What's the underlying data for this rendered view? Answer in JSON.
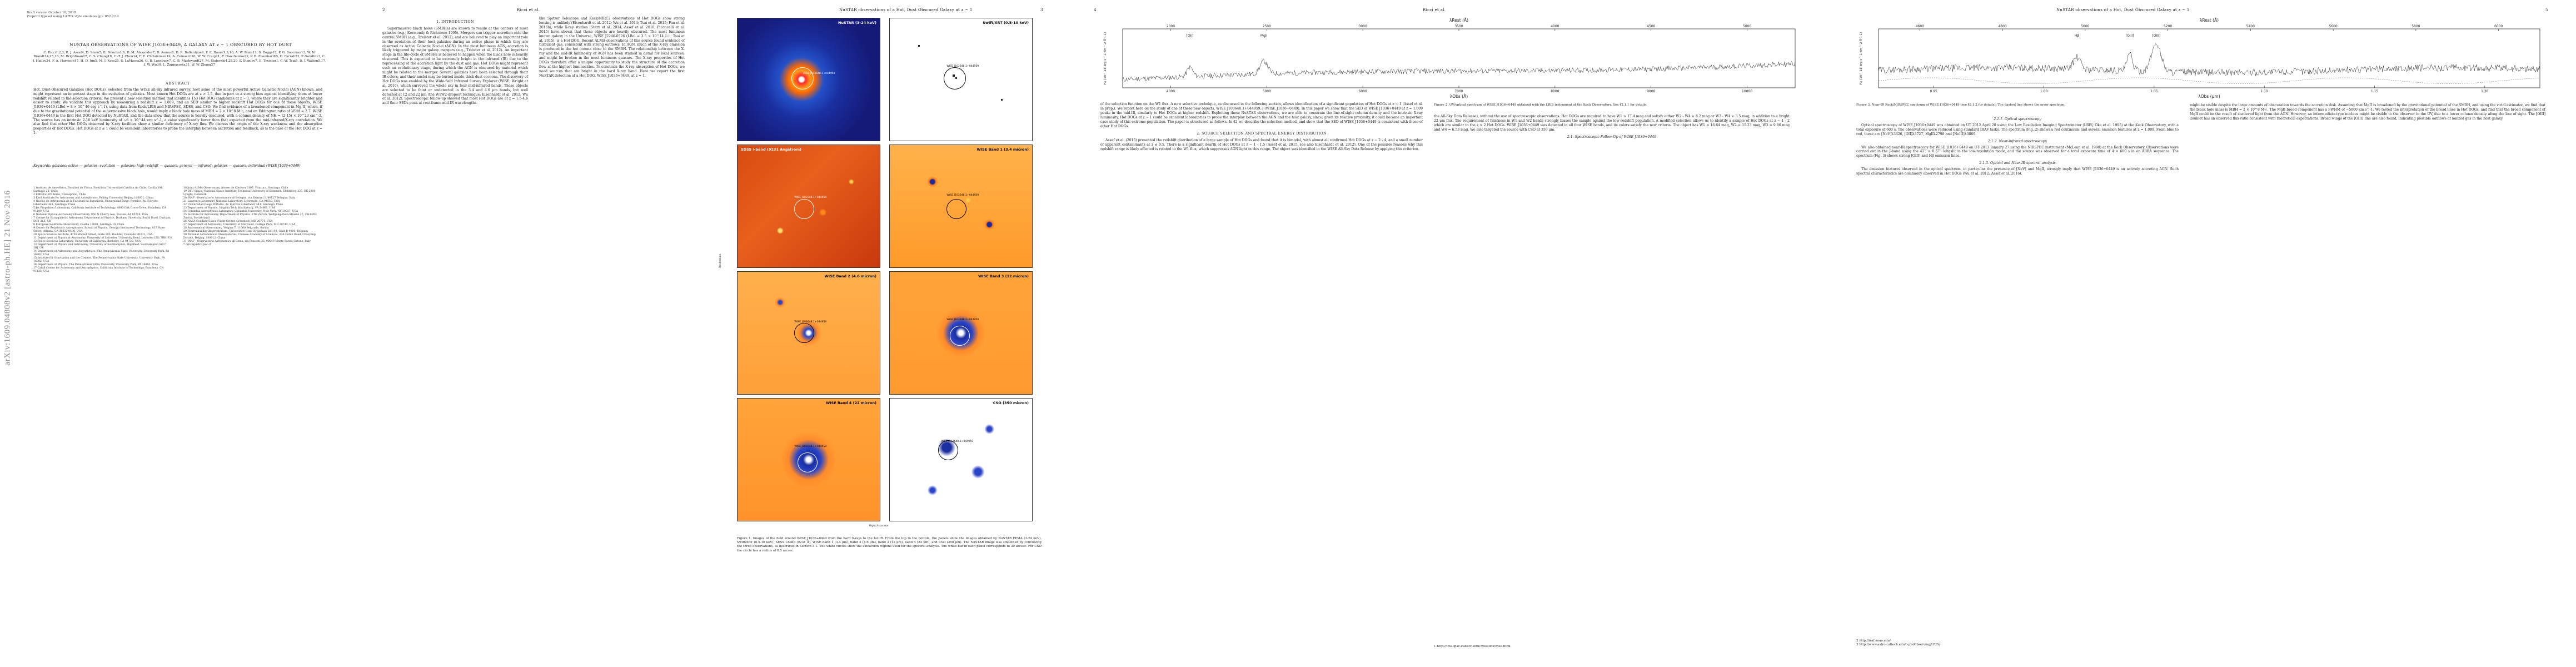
{
  "page1": {
    "arxiv_id": "arXiv:1609.04808v2  [astro-ph.HE]  21 Nov 2016",
    "draft_line1": "Draft version October 10, 2018",
    "draft_line2": "Preprint typeset using LATEX style emulateapj v. 05/12/14",
    "title": "NUSTAR OBSERVATIONS OF WISE J1036+0449, A GALAXY AT z ~ 1 OBSCURED BY HOT DUST",
    "authors": "C. Ricci1,2,3, R. J. Assef4, D. Stern5, R. Nikutta1,6, D. M. Alexander7, D. Asmus8, D. R. Ballantyne9, F. E. Bauer1,3,10, A. W. Blain11, S. Boggs12, P. G. Boorman13, W. N. Brandt14,15,16, M. Brightman17, C. S. Chang18, C.-T. J. Chen14, F. E. Christensen19, A. Comastri20, W. W. Craig21, T. Díaz-Santos22, P. R. Eisenhardt5, D. Farrah23, P. Gandhi13, C. J. Hailey24, F. A. Harrison17, H. D. Jun5, M. J. Koss25, S. LaMassa26, G. B. Lansbury7, C. B. Markwardt27, M. Stalevski4,28,29, F. Stanley7, E. Treister1, C.-W. Tsai5, D. J. Walton5,17, J. W. Wu30, L. Zappacosta31, W. W. Zhang27",
    "abstract_heading": "ABSTRACT",
    "abstract": "Hot, Dust-Obscured Galaxies (Hot DOGs), selected from the WISE all-sky infrared survey, host some of the most powerful Active Galactic Nuclei (AGN) known, and might represent an important stage in the evolution of galaxies. Most known Hot DOGs are at z > 1.5, due in part to a strong bias against identifying them at lower redshift related to the selection criteria. We present a new selection method that identifies 153 Hot DOG candidates at z ~ 1, where they are significantly brighter and easier to study. We validate this approach by measuring a redshift z = 1.009, and an SED similar to higher redshift Hot DOGs for one of these objects, WISE J1036+0449 (LBol ≃ 8 × 10^46 erg s^-1), using data from Keck/LRIS and NIRSPEC, SDSS, and CSO. We find evidence of a broadened component in Mg II, which, if due to the gravitational potential of the supermassive black hole, would imply a black hole mass of MBH ≃ 2 × 10^8 M☉, and an Eddington ratio of λEdd ≃ 2.7. WISE J1036+0449 is the first Hot DOG detected by NuSTAR, and the data show that the source is heavily obscured, with a column density of NH ≃ (2-15) × 10^23 cm^-2. The source has an intrinsic 2-10 keV luminosity of ~6 × 10^44 erg s^-1, a value significantly lower than that expected from the mid-infrared/X-ray correlation. We also find that other Hot DOGs observed by X-ray facilities show a similar deficiency of X-ray flux. We discuss the origin of the X-ray weakness and the absorption properties of Hot DOGs. Hot DOGs at z ≲ 1 could be excellent laboratories to probe the interplay between accretion and feedback, as is the case of the Hot DOG at z ≃ 1.",
    "keywords": "Keywords: galaxies: active — galaxies: evolution — galaxies: high-redshift — quasars: general — infrared: galaxies — quasars: individual (WISE J1036+0449)",
    "affiliations_left": "1 Instituto de Astrofísica, Facultad de Física, Pontificia Universidad Católica de Chile, Casilla 306, Santiago 22, Chile\n2 EMBIGGEN Anillo, Concepción, Chile\n3 Kavli Institute for Astronomy and Astrophysics, Peking University, Beijing 100871, China\n4 Núcleo de Astronomía de la Facultad de Ingeniería, Universidad Diego Portales, Av. Ejército Libertador 441, Santiago, Chile\n5 Jet Propulsion Laboratory, California Institute of Technology, 4800 Oak Grove Drive, Pasadena, CA 91109, USA\n6 National Optical Astronomy Observatory, 950 N Cherry Ave, Tucson, AZ 85719, USA\n7 Centre for Extragalactic Astronomy, Department of Physics, Durham University, South Road, Durham, DH1 3LE, UK\n8 European Southern Observatory, Casilla 19001, Santiago 19, Chile\n9 Center for Relativistic Astrophysics, School of Physics, Georgia Institute of Technology, 837 State Street, Atlanta, GA 30332-0430, USA\n10 Space Science Institute, 4750 Walnut Street, Suite 205, Boulder, Colorado 80301, USA\n11 Department of Physics & Astronomy, University of Leicester, University Road, Leicester LE1 7RH, UK\n12 Space Sciences Laboratory, University of California, Berkeley, CA 94720, USA\n13 Department of Physics and Astronomy, University of Southampton, Highfield, Southampton SO17 1BJ, UK\n14 Department of Astronomy and Astrophysics, The Pennsylvania State University, University Park, PA 16802, USA\n15 Institute for Gravitation and the Cosmos, The Pennsylvania State University, University Park, PA 16802, USA\n16 Department of Physics, The Pennsylvania State University, University Park, PA 16802, USA\n17 Cahill Center for Astronomy and Astrophysics, California Institute of Technology, Pasadena, CA 91125, USA",
    "affiliations_right": "18 Joint ALMA Observatory, Alonso de Córdova 3107, Vitacura, Santiago, Chile\n19 DTU Space, National Space Institute, Technical University of Denmark, Elektrovej 327, DK-2800 Lyngby, Denmark\n20 INAF - Osservatorio Astronomico di Bologna, via Ranzani 1, 40127 Bologna, Italy\n21 Lawrence Livermore National Laboratory, Livermore, CA 94550, USA\n22 Universidad Diego Portales, Av. Ejército Libertador 441, Santiago, Chile\n23 Department of Physics, Virginia Tech, Blacksburg, VA 24061, USA\n24 Columbia Astrophysics Laboratory, Columbia University, New York, NY 10027, USA\n25 Institute for Astronomy, Department of Physics, ETH Zurich, Wolfgang-Pauli-Strasse 27, CH-8093 Zurich, Switzerland\n26 NASA Goddard Space Flight Center, Greenbelt, MD 20771, USA\n27 Department of Astronomy, University of Maryland, College Park, MD 20742, USA\n28 Astronomical Observatory, Volgina 7, 11060 Belgrade, Serbia\n29 Sterrenkundig Observatorium, Universiteit Gent, Krijgslaan 281-S9, Gent B-9000, Belgium\n30 National Astronomical Observatories, Chinese Academy of Sciences, 20A Datun Road, Chaoyang District, Beijing, 100012, China\n31 INAF - Osservatorio Astronomico di Roma, via Frascati 33, 00040 Monte Porzio Catone, Italy\n* cricci@astro.puc.cl"
  },
  "page2": {
    "running_head": "Ricci et al.",
    "page_number": "2",
    "section1": "1. INTRODUCTION",
    "col_left": "Supermassive black holes (SMBHs) are known to reside at the centers of most galaxies (e.g., Kormendy & Richstone 1995). Mergers can trigger accretion onto the central SMBH (e.g., Treister et al. 2012), and are believed to play an important role in the evolution of their host galaxies during an active phase in which they are observed as Active Galactic Nuclei (AGN). In the most luminous AGN, accretion is likely triggered by major galaxy mergers (e.g., Treister et al. 2012). An important stage in the life-cycle of SMBHs is believed to happen when the black hole is heavily obscured. This is expected to be extremely bright in the infrared (IR) due to the reprocessing of the accretion light by the dust and gas. Hot DOGs might represent such an evolutionary stage, during which the AGN is obscured by material which might be related to the merger. Several galaxies have been selected through their IR colors, and their nuclei may be buried inside thick dust cocoons. The discovery of Hot DOGs was enabled by the Wide-field Infrared Survey Explorer (WISE; Wright et al. 2010), which surveyed the whole sky in four mid-infrared bands. These objects are selected to be faint or undetected in the 3.4 and 4.6 μm bands, but well detected at 12 and 22 μm (the W1W2-dropout technique; Eisenhardt et al. 2012; Wu et al. 2012). Spectroscopic follow-up showed that most Hot DOGs are at z = 1.5-4.6 and their SEDs peak at rest-frame mid-IR wavelengths.",
    "col_right": "like Spitzer Telescope and Keck/NIRC2 observations of Hot DOGs show strong lensing is unlikely (Eisenhardt et al. 2012; Wu et al. 2014; Tsai et al. 2015; Fan et al. 2016b), while X-ray studies (Stern et al. 2014; Assef et al. 2016; Piconcelli et al. 2015) have shown that these objects are heavily obscured. The most luminous known galaxy in the Universe, WISE J2246-0526 (LBol ≃ 3.5 × 10^14 L☉; Tsai et al. 2015), is a Hot DOG. Recent ALMA observations of this source found evidence of turbulent gas, consistent with strong outflows. In AGN, much of the X-ray emission is produced in the hot corona close to the SMBH. The relationship between the X-ray and the mid-IR luminosity of AGN has been studied in detail for local sources, and might be broken in the most luminous quasars. The X-ray properties of Hot DOGs therefore offer a unique opportunity to study the structure of the accretion flow at the highest luminosities. To constrain the X-ray absorption of Hot DOGs, we need sources that are bright in the hard X-ray band. Here we report the first NuSTAR detection of a Hot DOG, WISE J1036+0449, at z ≃ 1."
  },
  "page3": {
    "running_head": "NuSTAR observations of a Hot, Dust Obscured Galaxy at z ~ 1",
    "page_number": "3",
    "panels": [
      {
        "title": "NuSTAR (3-24 keV)",
        "label": "WISE J103648.1+044959"
      },
      {
        "title": "Swift/XRT (0.5-10 keV)",
        "label": "WISE J103648.1+044959"
      },
      {
        "title": "SDSS i-band (9231 Angstrom)",
        "label": "WISE J103648.1+044959"
      },
      {
        "title": "WISE Band 1 (3.4 micron)",
        "label": "WISE J103648.1+044959"
      },
      {
        "title": "WISE Band 2 (4.6 micron)",
        "label": "WISE J103648.1+044959"
      },
      {
        "title": "WISE Band 3 (12 micron)",
        "label": "WISE J103648.1+044959"
      },
      {
        "title": "WISE Band 4 (22 micron)",
        "label": "WISE J103648.1+044959"
      },
      {
        "title": "CSO (350 micron)",
        "label": "WISE J103648.1+044959"
      }
    ],
    "axis_ra": "Right Ascension",
    "axis_dec": "Declination",
    "caption": "Figure 1. Images of the field around WISE J1036+0449 from the hard X-rays to the far-IR. From the top to the bottom, the panels show the images obtained by NuSTAR FPMA (3-24 keV), Swift/XRT (0.5-10 keV), SDSS i-band (9231 Å), WISE band 1 (3.4 μm), band 2 (4.6 μm), band 3 (12 μm), band 4 (22 μm), and CSO (350 μm). The NuSTAR image was smoothed by convolving the three observations, as described in Section 3.1. The white circles show the extraction regions used for the spectral analysis. The white bar in each panel corresponds to 30 arcsec. For CSO the circle has a radius of 8.5 arcsec."
  },
  "page4": {
    "running_head": "Ricci et al.",
    "page_number": "4",
    "fig2_caption": "Figure 2. UV/optical spectrum of WISE J1036+0449 obtained with the LRIS instrument at the Keck Observatory. See §2.1.1 for details.",
    "fig2_xlabel": "λObs (Å)",
    "fig2_toplabel": "λRest (Å)",
    "fig2_ylabel": "Fλ (10^-18 erg s^-1 cm^-2 Å^-1)",
    "fig2_lines": [
      "[OII]",
      "MgII"
    ],
    "fig2_top_ticks": [
      "2000",
      "2500",
      "3000",
      "3500",
      "4000",
      "4500",
      "5000"
    ],
    "fig2_bottom_ticks": [
      "4000",
      "5000",
      "6000",
      "7000",
      "8000",
      "9000",
      "10000"
    ],
    "col_left": "of the selection function on the W1 flux. A new selective technique, as discussed in the following section, allows identification of a significant population of Hot DOGs at z ~ 1 (Assef et al. in prep.). We report here on the study of one of these new objects, WISE J103648.1+044959.3 (WISE J1036+0449). In this paper we show that the SED of WISE J1036+0449 at z ≃ 1.009 peaks in the mid-IR, similarly to Hot DOGs at higher redshift. Exploiting these NuSTAR observations, we are able to constrain the line-of-sight column density and the intrinsic X-ray luminosity. Hot DOGs at z ~ 1 could be excellent laboratories to probe the interplay between the AGN and the host galaxy, since, given its relative proximity, it could become an important case study of this extreme population. The paper is structured as follows. In §2 we describe the selection method, and show that the SED of WISE J1036+0449 is consistent with those of other Hot DOGs.",
    "section2": "2. SOURCE SELECTION AND SPECTRAL ENERGY DISTRIBUTION",
    "col_left2": "Assef et al. (2015) presented the redshift distribution of a large sample of Hot DOGs and found that it is bimodal, with almost all confirmed Hot DOGs at z ~ 2 - 4, and a small number of apparent contaminants at z ≲ 0.5. There is a significant dearth of Hot DOGs at z ~ 1 - 1.5 (Assef et al. 2015, see also Eisenhardt et al. 2012). One of the possible reasons why this redshift range is likely affected is related to the W1 flux, which suppresses AGN light in this range. The object was identified in the WISE All-Sky Data Release by applying this criterion.",
    "col_right": "the All-Sky Data Release), without the use of spectroscopic observations. Hot DOGs are required to have W1 > 17.4 mag and satisfy either W2 - W4 ≥ 8.2 mag or W3 - W4 ≥ 3.5 mag, in addition to a bright 22 μm flux. The requirement of faintness in W1 and W2 bands strongly biases the sample against the low-redshift population. A modified selection allows us to identify a sample of Hot DOGs at z ~ 1 - 2 which are similar to the z > 2 Hot DOGs. WISE J1036+0449 was detected in all four WISE bands, and its colors satisfy the new criteria. The object has W1 = 16.64 mag, W2 = 15.23 mag, W3 = 9.86 mag and W4 = 6.53 mag. We also targeted the source with CSO at 350 μm.",
    "subsection": "2.1. Spectroscopic Follow-Up of WISE J1036+0449",
    "footnote": "1 http://irsa.ipac.caltech.edu/Missions/wise.html"
  },
  "page5": {
    "running_head": "NuSTAR observations of a Hot, Dust Obscured Galaxy at z ~ 1",
    "page_number": "5",
    "fig3_caption": "Figure 3. Near-IR Keck/NIRSPEC spectrum of WISE J1036+0449 (see §2.1.2 for details). The dashed line shows the error spectrum.",
    "fig3_xlabel": "λObs (μm)",
    "fig3_toplabel": "λRest (Å)",
    "fig3_ylabel": "Fλ (10^-18 erg s^-1 cm^-2 Å^-1)",
    "fig3_lines": [
      "Hβ",
      "[OIII]",
      "[OIII]"
    ],
    "fig3_top_ticks": [
      "4600",
      "4800",
      "5000",
      "5200",
      "5400",
      "5600",
      "5800",
      "6000"
    ],
    "fig3_bottom_ticks": [
      "0.95",
      "1.00",
      "1.05",
      "1.10",
      "1.15",
      "1.20"
    ],
    "sub1": "2.1.1. Optical spectroscopy",
    "col_left": "Optical spectroscopy of WISE J1036+0449 was obtained on UT 2012 April 20 using the Low Resolution Imaging Spectrometer (LRIS; Oke et al. 1995) at the Keck Observatory, with a total exposure of 600 s. The observations were reduced using standard IRAF tasks. The spectrum (Fig. 2) shows a red continuum and several emission features at z = 1.009. From blue to red, these are [NeV]λ3426, [OII]λ3727, MgIIλ2798 and [NeIII]λ3869.",
    "sub2": "2.1.2. Near-infrared spectroscopy",
    "col_left2": "We also obtained near-IR spectroscopy for WISE J1036+0449 on UT 2013 January 27 using the NIRSPEC instrument (McLean et al. 1998) at the Keck Observatory. Observations were carried out in the J-band using the 42'' × 0.57'' longslit in the low-resolution mode, and the source was observed for a total exposure time of 4 × 600 s in an ABBA sequence. The spectrum (Fig. 3) shows strong [OIII] and Hβ emission lines.",
    "sub3": "2.1.3. Optical and Near-IR spectral analysis",
    "col_left3": "The emission features observed in the optical spectrum, in particular the presence of [NeV] and MgII, strongly imply that WISE J1036+0449 is an actively accreting AGN. Such spectral characteristics are commonly observed in Hot DOGs (Wu et al. 2012; Assef et al. 2016).",
    "col_right": "might be visible despite the large amounts of obscuration towards the accretion disk. Assuming that MgII is broadened by the gravitational potential of the SMBH, and using the virial estimator, we find that the black hole mass is MBH ≃ 2 × 10^8 M☉. The MgII broad component has a FWHM of ~5000 km s^-1. We tested the interpretation of the broad lines in Hot DOGs, and find that the broad component of MgII could be the result of scattered light from the AGN. However, an intermediate-type nucleus might be visible to the observer in the UV, due to a lower column density along the line of sight. The [OIII] doublet has an observed flux ratio consistent with theoretical expectations. Broad wings of the [OIII] line are also found, indicating possible outflows of ionized gas in the host galaxy.",
    "footnotes": "2 http://iraf.noao.edu/\n3 http://www.astro.caltech.edu/~pls/Observing/LRIS/"
  }
}
